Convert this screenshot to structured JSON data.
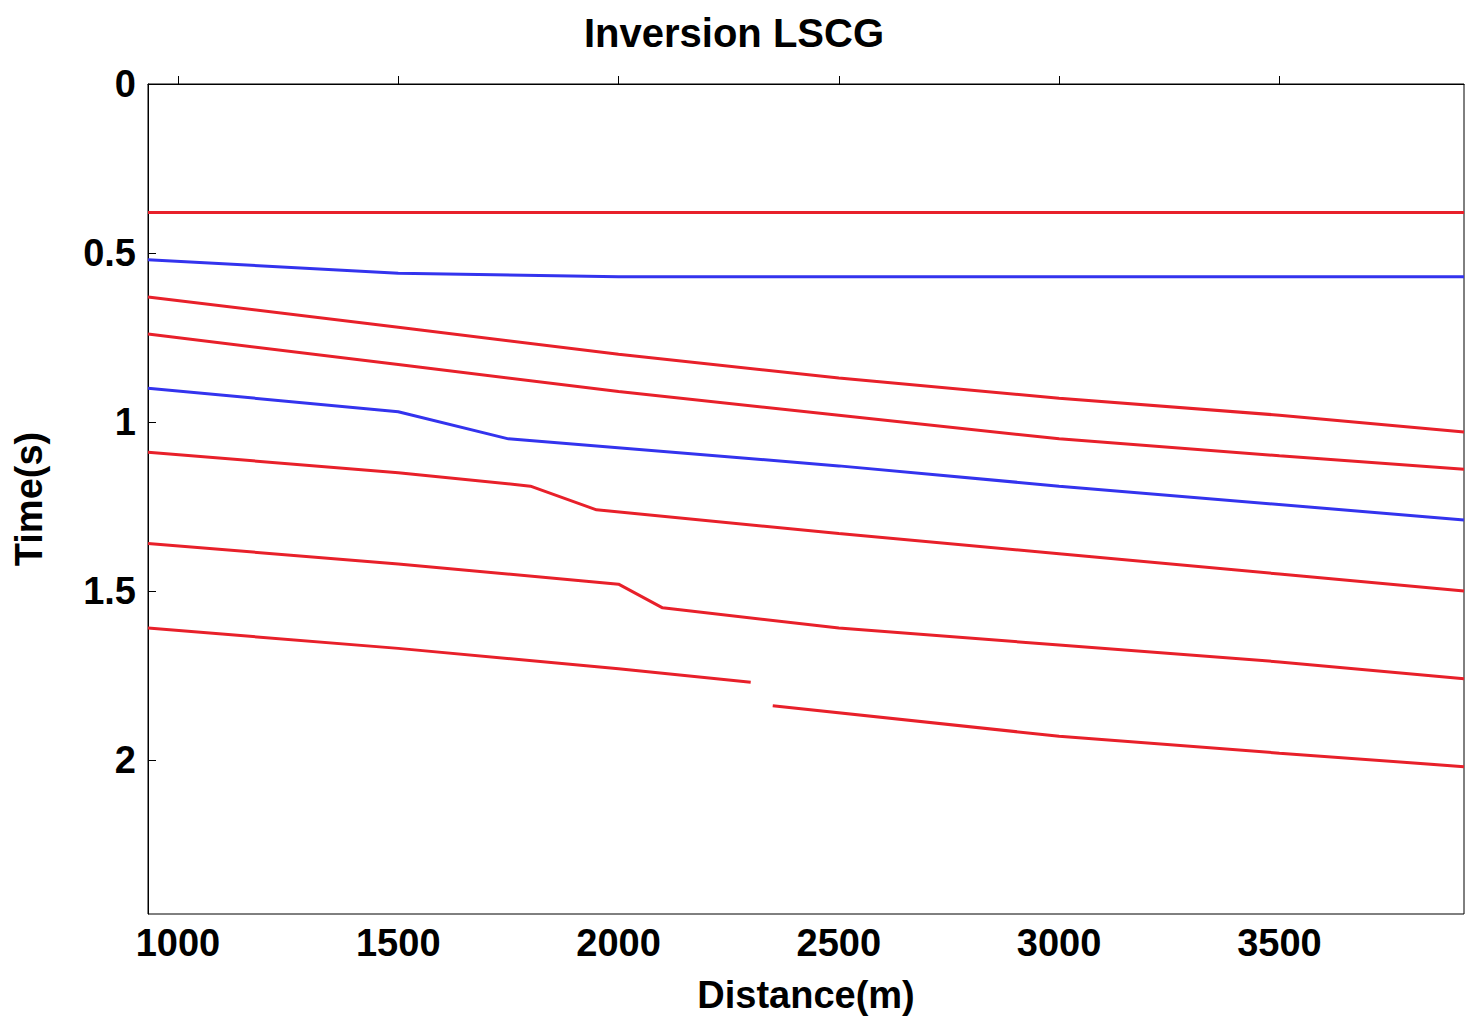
{
  "chart_data": {
    "type": "line",
    "title": "Inversion LSCG",
    "x_label": "Distance(m)",
    "y_label": "Time(s)",
    "xlim": [
      932,
      3919
    ],
    "xticks": [
      1000,
      1500,
      2000,
      2500,
      3000,
      3500
    ],
    "ylim": [
      0,
      2.456
    ],
    "yticks": [
      0,
      0.5,
      1,
      1.5,
      2
    ],
    "grid": false,
    "series": [
      {
        "color": "#e8202a",
        "x": [
          932,
          1500,
          2000,
          2300
        ],
        "values": [
          1.61,
          1.67,
          1.73,
          1.77
        ]
      },
      {
        "color": "#e8202a",
        "x": [
          2350,
          3000,
          3500,
          3919
        ],
        "values": [
          1.84,
          1.93,
          1.98,
          2.02
        ]
      },
      {
        "color": "#e8202a",
        "x": [
          932,
          1500,
          2000,
          2100,
          2500,
          3000,
          3500,
          3919
        ],
        "values": [
          1.36,
          1.42,
          1.48,
          1.55,
          1.61,
          1.66,
          1.71,
          1.76
        ]
      },
      {
        "color": "#e8202a",
        "x": [
          932,
          1500,
          1800,
          1950,
          2500,
          3000,
          3500,
          3919
        ],
        "values": [
          1.09,
          1.15,
          1.19,
          1.26,
          1.33,
          1.39,
          1.45,
          1.5
        ]
      },
      {
        "color": "#3333ee",
        "x": [
          932,
          1500,
          1750,
          2500,
          3000,
          3919
        ],
        "values": [
          0.9,
          0.97,
          1.05,
          1.13,
          1.19,
          1.29
        ]
      },
      {
        "color": "#e8202a",
        "x": [
          932,
          1500,
          2000,
          2500,
          3000,
          3500,
          3919
        ],
        "values": [
          0.74,
          0.83,
          0.91,
          0.98,
          1.05,
          1.1,
          1.14
        ]
      },
      {
        "color": "#e8202a",
        "x": [
          932,
          1500,
          2000,
          2500,
          3000,
          3500,
          3919
        ],
        "values": [
          0.63,
          0.72,
          0.8,
          0.87,
          0.93,
          0.98,
          1.03
        ]
      },
      {
        "color": "#3333ee",
        "x": [
          932,
          1500,
          2000,
          3919
        ],
        "values": [
          0.52,
          0.56,
          0.57,
          0.57
        ]
      },
      {
        "color": "#e8202a",
        "x": [
          932,
          3919
        ],
        "values": [
          0.38,
          0.38
        ]
      }
    ]
  }
}
